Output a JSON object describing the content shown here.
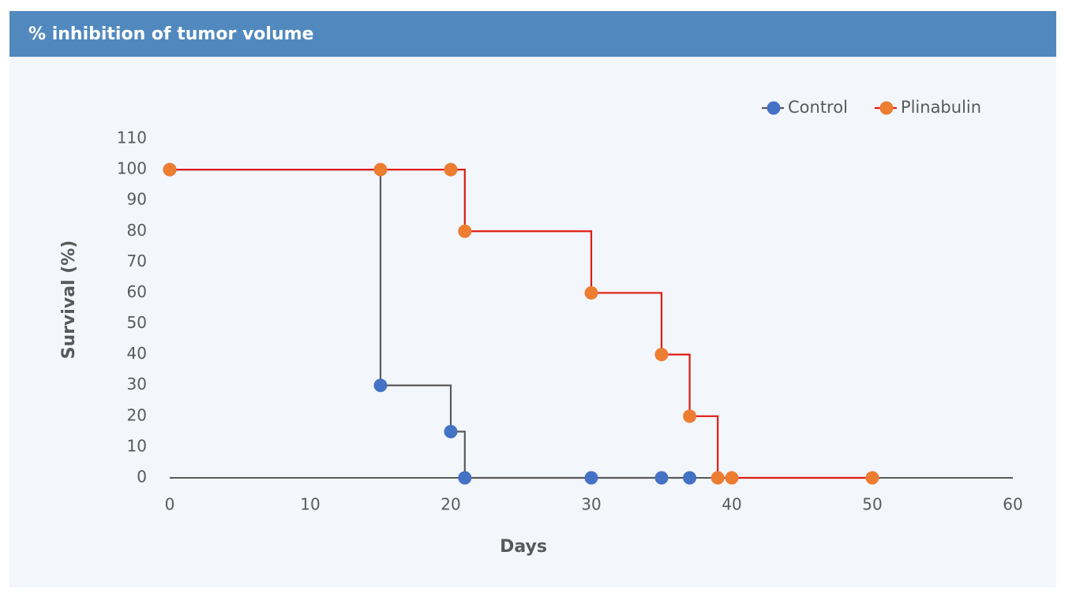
{
  "chart_data": {
    "type": "step",
    "title": "% inhibition of tumor volume",
    "x_label": "Days",
    "y_label": "Survival (%)",
    "xlim": [
      0,
      60
    ],
    "xticks": [
      0,
      10,
      20,
      30,
      40,
      50,
      60
    ],
    "ylim": [
      0,
      110
    ],
    "yticks": [
      0,
      10,
      20,
      30,
      40,
      50,
      60,
      70,
      80,
      90,
      100,
      110
    ],
    "grid": false,
    "legend": "top-right",
    "series": [
      {
        "name": "Control",
        "color": "#4472c4",
        "line_color": "#595959",
        "x": [
          0,
          15,
          20,
          21,
          30,
          35,
          37
        ],
        "values": [
          100,
          30,
          15,
          0,
          0,
          0,
          0
        ]
      },
      {
        "name": "Plinabulin",
        "color": "#ed7d31",
        "line_color": "#e01b10",
        "x": [
          0,
          15,
          20,
          21,
          30,
          35,
          37,
          39,
          40,
          50
        ],
        "values": [
          100,
          100,
          100,
          80,
          60,
          40,
          20,
          0,
          0,
          0
        ]
      }
    ]
  }
}
